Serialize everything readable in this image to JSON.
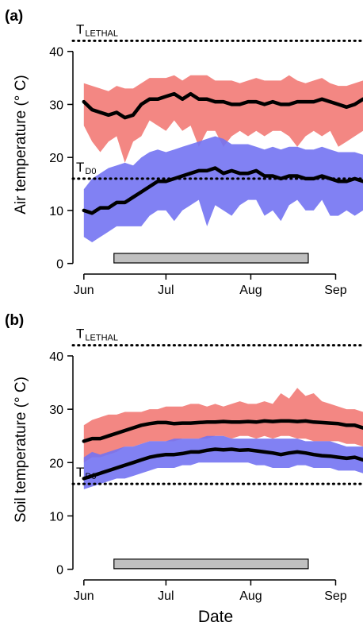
{
  "figure": {
    "xlabel": "Date"
  },
  "chart_data": [
    {
      "type": "area",
      "panel_label": "(a)",
      "ylabel": "Air temperature (° C)",
      "ylim": [
        -2,
        47
      ],
      "xlim": [
        "2021-05-28",
        "2021-09-11"
      ],
      "x_ticks": [
        {
          "label": "Jun",
          "date": "2021-06-01"
        },
        {
          "label": "Jul",
          "date": "2021-07-01"
        },
        {
          "label": "Aug",
          "date": "2021-08-01"
        },
        {
          "label": "Sep",
          "date": "2021-09-01"
        }
      ],
      "y_ticks": [
        0,
        10,
        20,
        30,
        40
      ],
      "thresholds": [
        {
          "label": "T",
          "subscript": "LETHAL",
          "value": 42
        },
        {
          "label": "T",
          "subscript": "D0",
          "value": 16
        }
      ],
      "bar": {
        "start": "2021-06-12",
        "end": "2021-08-22",
        "value": 1,
        "color": "#c0c0c0"
      },
      "series": [
        {
          "color": "#f27a76",
          "start_date": "2021-06-01",
          "step_days": 3,
          "mean": [
            30.5,
            29,
            28.5,
            28,
            28.5,
            27.5,
            28,
            30,
            31,
            31,
            31.5,
            32,
            31,
            32,
            31,
            31,
            30.5,
            30.5,
            30,
            30,
            30.5,
            30.5,
            30,
            30.5,
            30,
            30,
            30.5,
            30.5,
            30.5,
            31,
            30.5,
            30,
            29.5,
            30,
            31,
            30,
            26
          ],
          "upper": [
            34,
            33.5,
            33,
            32.5,
            33.5,
            33,
            33,
            34,
            35,
            35,
            35,
            35.5,
            34.5,
            35.5,
            35.5,
            35.5,
            34.5,
            34.5,
            34.5,
            34,
            34.5,
            35,
            34.5,
            34.5,
            34.5,
            35.5,
            34.5,
            34,
            34.5,
            35,
            34,
            33.5,
            33.5,
            34,
            34.5,
            33.5,
            31
          ],
          "lower": [
            26,
            23,
            21,
            23,
            24,
            19,
            23,
            24,
            27,
            26,
            25,
            27,
            25,
            26,
            22,
            25,
            25,
            22,
            24,
            25,
            24,
            25,
            24,
            25,
            25,
            24,
            22,
            24,
            25,
            24,
            25,
            22,
            23,
            24,
            25,
            25,
            21
          ]
        },
        {
          "color": "#7373f2",
          "start_date": "2021-06-01",
          "step_days": 3,
          "mean": [
            10,
            9.5,
            10.5,
            10.5,
            11.5,
            11.5,
            12.5,
            13.5,
            14.5,
            15.5,
            15.5,
            16,
            16.5,
            17,
            17.5,
            17.5,
            18,
            17,
            17.5,
            17,
            17,
            17.5,
            16.5,
            16.5,
            16,
            16.5,
            16.5,
            16,
            16,
            16.5,
            16,
            15.5,
            15.5,
            16,
            15.5,
            15.5,
            13
          ],
          "upper": [
            14,
            16,
            17,
            18,
            18.5,
            19,
            18.5,
            20,
            21,
            21.5,
            21,
            21.5,
            22,
            22.5,
            23,
            23.5,
            24,
            23.5,
            22.5,
            22.5,
            22.5,
            22,
            21.5,
            22,
            21.5,
            22,
            22,
            21.5,
            21.5,
            22,
            21.5,
            21,
            21,
            21,
            20.5,
            20.5,
            18.5
          ],
          "lower": [
            5,
            4,
            5,
            6,
            7,
            7,
            7,
            7,
            9,
            10,
            10,
            8,
            10,
            11,
            12,
            7,
            11,
            10,
            9,
            11,
            12,
            12,
            9,
            10,
            8,
            11,
            12,
            10,
            10,
            12,
            9,
            9,
            10,
            9,
            10,
            9,
            8
          ]
        }
      ]
    },
    {
      "type": "area",
      "panel_label": "(b)",
      "ylabel": "Soil temperature (° C)",
      "ylim": [
        -2,
        47
      ],
      "xlim": [
        "2021-05-28",
        "2021-09-11"
      ],
      "x_ticks": [
        {
          "label": "Jun",
          "date": "2021-06-01"
        },
        {
          "label": "Jul",
          "date": "2021-07-01"
        },
        {
          "label": "Aug",
          "date": "2021-08-01"
        },
        {
          "label": "Sep",
          "date": "2021-09-01"
        }
      ],
      "y_ticks": [
        0,
        10,
        20,
        30,
        40
      ],
      "thresholds": [
        {
          "label": "T",
          "subscript": "LETHAL",
          "value": 42
        },
        {
          "label": "T",
          "subscript": "D0",
          "value": 16
        }
      ],
      "bar": {
        "start": "2021-06-12",
        "end": "2021-08-22",
        "value": 1,
        "color": "#c0c0c0"
      },
      "series": [
        {
          "color": "#f27a76",
          "start_date": "2021-06-01",
          "step_days": 3,
          "mean": [
            24,
            24.5,
            24.5,
            25,
            25.5,
            26,
            26.5,
            27,
            27.3,
            27.5,
            27.5,
            27.3,
            27.4,
            27.4,
            27.5,
            27.6,
            27.6,
            27.7,
            27.6,
            27.6,
            27.7,
            27.6,
            27.8,
            27.7,
            27.8,
            27.8,
            27.7,
            27.8,
            27.6,
            27.5,
            27.4,
            27.3,
            27,
            27,
            26.5,
            26.3,
            25.5
          ],
          "upper": [
            27,
            28,
            28.5,
            29,
            29,
            29.5,
            29.5,
            29.5,
            30,
            30,
            30.5,
            30.5,
            30.5,
            31,
            31,
            30.5,
            31,
            30.5,
            31,
            31.5,
            31,
            31,
            31.5,
            31,
            33,
            32,
            34,
            32.5,
            33,
            31.5,
            31,
            30.5,
            30,
            30,
            29.5,
            29,
            28
          ],
          "lower": [
            20,
            21,
            21,
            21.5,
            22,
            23,
            23,
            23.5,
            24,
            24,
            24,
            24,
            24.5,
            24.5,
            24.5,
            24.5,
            25,
            25,
            24.5,
            25,
            25,
            24.5,
            25,
            24.5,
            25,
            25,
            24.5,
            24.5,
            24,
            24,
            24,
            24,
            23.5,
            23.5,
            23,
            23,
            22
          ]
        },
        {
          "color": "#7373f2",
          "start_date": "2021-06-01",
          "step_days": 3,
          "mean": [
            17,
            17.5,
            18,
            18.5,
            19,
            19.5,
            20,
            20.5,
            21,
            21.3,
            21.5,
            21.5,
            21.7,
            22,
            22,
            22.3,
            22.5,
            22.4,
            22.5,
            22.3,
            22.4,
            22.2,
            22,
            21.8,
            21.5,
            21.8,
            22,
            21.8,
            21.5,
            21.3,
            21.2,
            21,
            20.8,
            21,
            20.5,
            20.3,
            19.5
          ],
          "upper": [
            21,
            22,
            21.5,
            22,
            22.5,
            23,
            23,
            23.5,
            24,
            24,
            24,
            24.5,
            24.5,
            24.5,
            24.5,
            25,
            25,
            25,
            24.5,
            24.5,
            24.5,
            24.5,
            24.5,
            24.5,
            24.5,
            24.5,
            24.5,
            24,
            24,
            24,
            24,
            23.5,
            23,
            23,
            23,
            23,
            22.5
          ],
          "lower": [
            15,
            15.5,
            16,
            16.5,
            17,
            17,
            17.5,
            18,
            18.5,
            19,
            19,
            19,
            19.5,
            19.5,
            20,
            20,
            20,
            20,
            20,
            20,
            20,
            19.5,
            19.5,
            19,
            19,
            19,
            19.5,
            19.5,
            19,
            19,
            19,
            18.5,
            18.5,
            18.5,
            18,
            18,
            17.5
          ]
        }
      ]
    }
  ]
}
